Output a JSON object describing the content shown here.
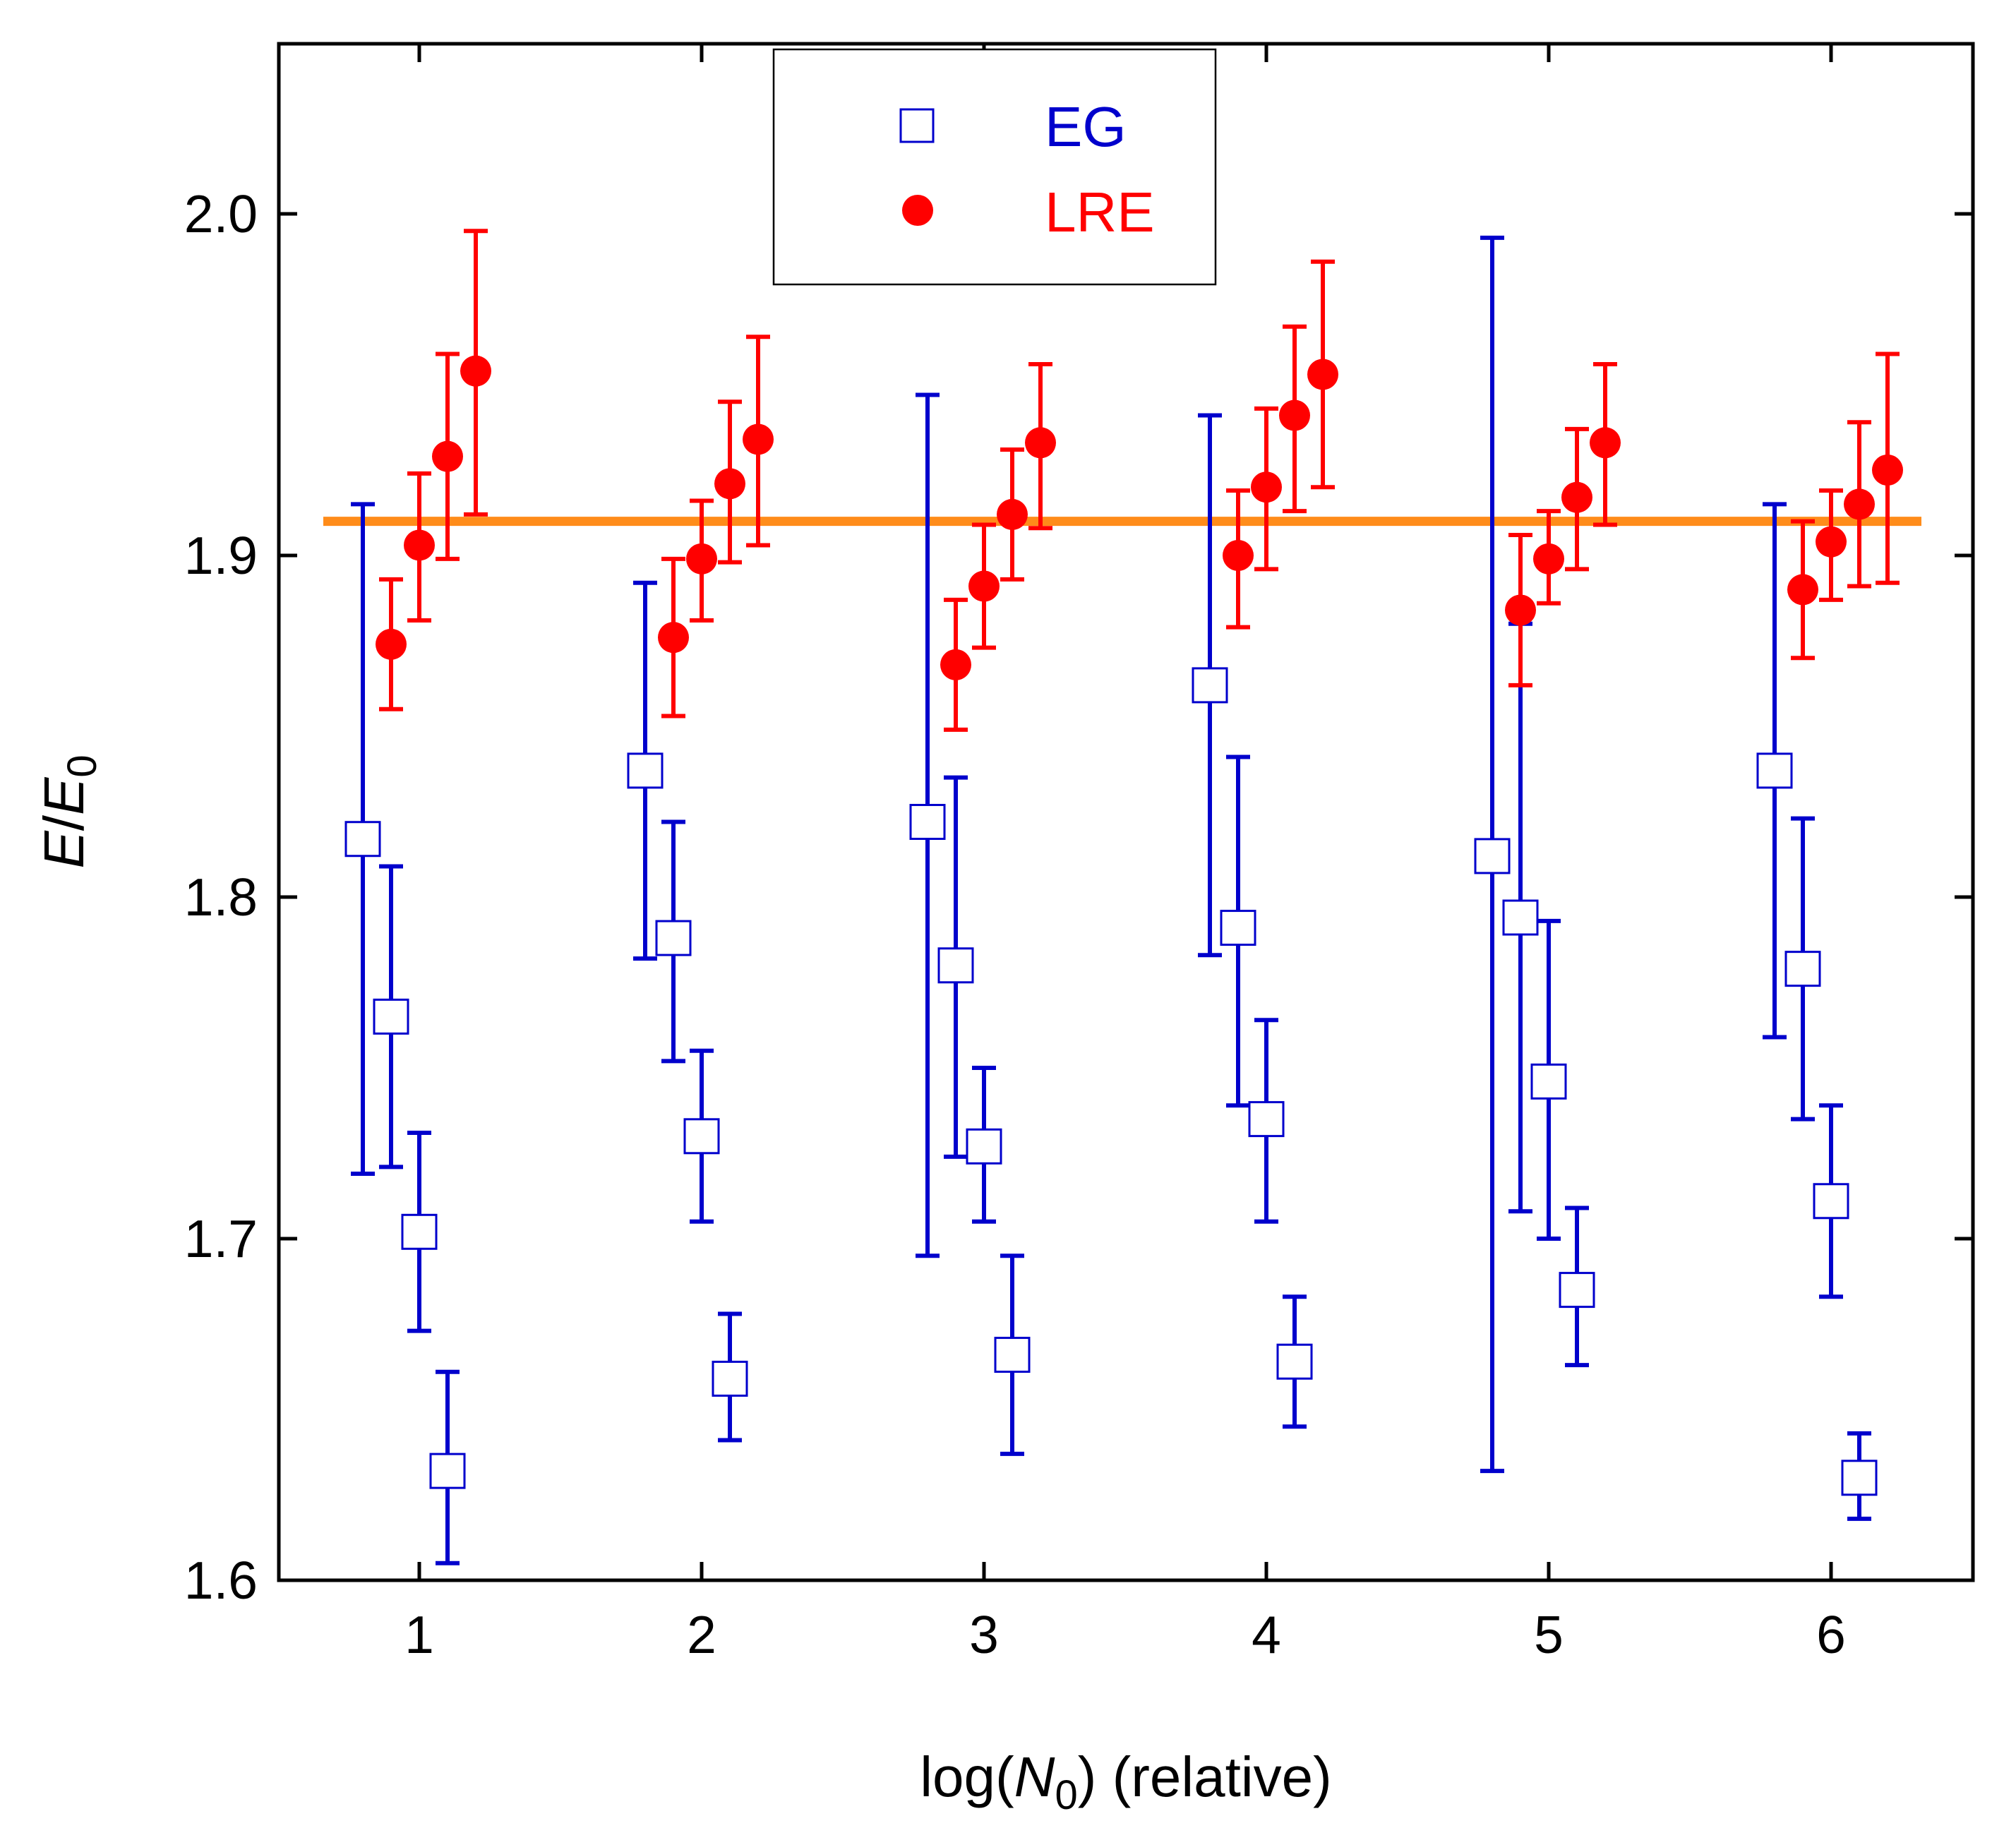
{
  "colors": {
    "eg": "#0000cc",
    "lre": "#ff0000",
    "reference_line": "#ff8c1a",
    "axis": "#000000"
  },
  "chart_data": {
    "type": "scatter",
    "title": "",
    "xlabel_parts": [
      "log(",
      "N",
      "0",
      ") (relative)"
    ],
    "ylabel_parts": [
      "E",
      "/",
      "E",
      "0"
    ],
    "xlim": [
      0.5,
      6.5
    ],
    "ylim": [
      1.6,
      2.05
    ],
    "xticks": [
      1,
      2,
      3,
      4,
      5,
      6
    ],
    "yticks": [
      1.6,
      1.7,
      1.8,
      1.9,
      2.0
    ],
    "ytick_labels": [
      "1.6",
      "1.7",
      "1.8",
      "1.9",
      "2.0"
    ],
    "xtick_labels": [
      "1",
      "2",
      "3",
      "4",
      "5",
      "6"
    ],
    "grid": false,
    "legend": {
      "placement": "top-center",
      "entries": [
        {
          "label": "EG",
          "marker": "open-square",
          "series": "EG"
        },
        {
          "label": "LRE",
          "marker": "filled-circle",
          "series": "LRE"
        }
      ]
    },
    "reference_line": {
      "y": 1.91,
      "x_range": [
        0.66,
        6.32
      ],
      "style": "horizontal line"
    },
    "series": [
      {
        "name": "EG",
        "marker": "open-square",
        "points": [
          {
            "x": 0.8,
            "y": 1.817,
            "lo": 1.719,
            "hi": 1.915
          },
          {
            "x": 0.9,
            "y": 1.765,
            "lo": 1.721,
            "hi": 1.809
          },
          {
            "x": 1.0,
            "y": 1.702,
            "lo": 1.673,
            "hi": 1.731
          },
          {
            "x": 1.1,
            "y": 1.632,
            "lo": 1.605,
            "hi": 1.661
          },
          {
            "x": 1.8,
            "y": 1.837,
            "lo": 1.782,
            "hi": 1.892
          },
          {
            "x": 1.9,
            "y": 1.788,
            "lo": 1.752,
            "hi": 1.822
          },
          {
            "x": 2.0,
            "y": 1.73,
            "lo": 1.705,
            "hi": 1.755
          },
          {
            "x": 2.1,
            "y": 1.659,
            "lo": 1.641,
            "hi": 1.678
          },
          {
            "x": 2.8,
            "y": 1.822,
            "lo": 1.695,
            "hi": 1.947
          },
          {
            "x": 2.9,
            "y": 1.78,
            "lo": 1.724,
            "hi": 1.835
          },
          {
            "x": 3.0,
            "y": 1.727,
            "lo": 1.705,
            "hi": 1.75
          },
          {
            "x": 3.1,
            "y": 1.666,
            "lo": 1.637,
            "hi": 1.695
          },
          {
            "x": 3.8,
            "y": 1.862,
            "lo": 1.783,
            "hi": 1.941
          },
          {
            "x": 3.9,
            "y": 1.791,
            "lo": 1.739,
            "hi": 1.841
          },
          {
            "x": 4.0,
            "y": 1.735,
            "lo": 1.705,
            "hi": 1.764
          },
          {
            "x": 4.1,
            "y": 1.664,
            "lo": 1.645,
            "hi": 1.683
          },
          {
            "x": 4.8,
            "y": 1.812,
            "lo": 1.632,
            "hi": 1.993
          },
          {
            "x": 4.9,
            "y": 1.794,
            "lo": 1.708,
            "hi": 1.88
          },
          {
            "x": 5.0,
            "y": 1.746,
            "lo": 1.7,
            "hi": 1.793
          },
          {
            "x": 5.1,
            "y": 1.685,
            "lo": 1.663,
            "hi": 1.709
          },
          {
            "x": 5.8,
            "y": 1.837,
            "lo": 1.759,
            "hi": 1.915
          },
          {
            "x": 5.9,
            "y": 1.779,
            "lo": 1.735,
            "hi": 1.823
          },
          {
            "x": 6.0,
            "y": 1.711,
            "lo": 1.683,
            "hi": 1.739
          },
          {
            "x": 6.1,
            "y": 1.63,
            "lo": 1.618,
            "hi": 1.643
          }
        ]
      },
      {
        "name": "LRE",
        "marker": "filled-circle",
        "points": [
          {
            "x": 0.9,
            "y": 1.874,
            "lo": 1.855,
            "hi": 1.893
          },
          {
            "x": 1.0,
            "y": 1.903,
            "lo": 1.881,
            "hi": 1.924
          },
          {
            "x": 1.1,
            "y": 1.929,
            "lo": 1.899,
            "hi": 1.959
          },
          {
            "x": 1.2,
            "y": 1.954,
            "lo": 1.912,
            "hi": 1.995
          },
          {
            "x": 1.9,
            "y": 1.876,
            "lo": 1.853,
            "hi": 1.899
          },
          {
            "x": 2.0,
            "y": 1.899,
            "lo": 1.881,
            "hi": 1.916
          },
          {
            "x": 2.1,
            "y": 1.921,
            "lo": 1.898,
            "hi": 1.945
          },
          {
            "x": 2.2,
            "y": 1.934,
            "lo": 1.903,
            "hi": 1.964
          },
          {
            "x": 2.9,
            "y": 1.868,
            "lo": 1.849,
            "hi": 1.887
          },
          {
            "x": 3.0,
            "y": 1.891,
            "lo": 1.873,
            "hi": 1.909
          },
          {
            "x": 3.1,
            "y": 1.912,
            "lo": 1.893,
            "hi": 1.931
          },
          {
            "x": 3.2,
            "y": 1.933,
            "lo": 1.908,
            "hi": 1.956
          },
          {
            "x": 3.9,
            "y": 1.9,
            "lo": 1.879,
            "hi": 1.919
          },
          {
            "x": 4.0,
            "y": 1.92,
            "lo": 1.896,
            "hi": 1.943
          },
          {
            "x": 4.1,
            "y": 1.941,
            "lo": 1.913,
            "hi": 1.967
          },
          {
            "x": 4.2,
            "y": 1.953,
            "lo": 1.92,
            "hi": 1.986
          },
          {
            "x": 4.9,
            "y": 1.884,
            "lo": 1.862,
            "hi": 1.906
          },
          {
            "x": 5.0,
            "y": 1.899,
            "lo": 1.886,
            "hi": 1.913
          },
          {
            "x": 5.1,
            "y": 1.917,
            "lo": 1.896,
            "hi": 1.937
          },
          {
            "x": 5.2,
            "y": 1.933,
            "lo": 1.909,
            "hi": 1.956
          },
          {
            "x": 5.9,
            "y": 1.89,
            "lo": 1.87,
            "hi": 1.91
          },
          {
            "x": 6.0,
            "y": 1.904,
            "lo": 1.887,
            "hi": 1.919
          },
          {
            "x": 6.1,
            "y": 1.915,
            "lo": 1.891,
            "hi": 1.939
          },
          {
            "x": 6.2,
            "y": 1.925,
            "lo": 1.892,
            "hi": 1.959
          }
        ]
      }
    ]
  }
}
